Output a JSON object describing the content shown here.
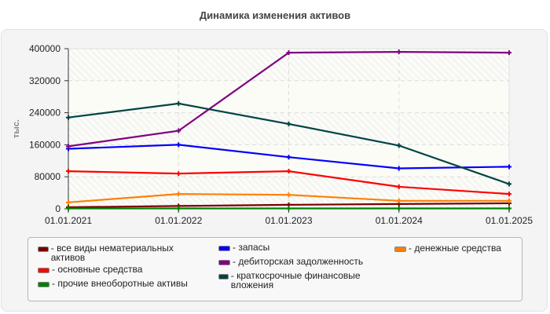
{
  "chart_data": {
    "type": "line",
    "title": "Динамика изменения активов",
    "xlabel": "",
    "ylabel": "тыс.",
    "x": [
      "01.01.2021",
      "01.01.2022",
      "01.01.2023",
      "01.01.2024",
      "01.01.2025"
    ],
    "ylim": [
      0,
      400000
    ],
    "yticks": [
      "0",
      "80000",
      "160000",
      "240000",
      "320000",
      "400000"
    ],
    "grid": true,
    "legend_position": "bottom",
    "series": [
      {
        "name": "все виды нематериальных активов",
        "color": "#7a0000",
        "values": [
          4000,
          7000,
          10000,
          12000,
          14000
        ]
      },
      {
        "name": "основные средства",
        "color": "#ff0000",
        "values": [
          94000,
          88000,
          94000,
          55000,
          37000
        ]
      },
      {
        "name": "прочие внеоборотные активы",
        "color": "#008000",
        "values": [
          1000,
          1000,
          1000,
          1000,
          1000
        ]
      },
      {
        "name": "запасы",
        "color": "#0000ff",
        "values": [
          150000,
          160000,
          129000,
          101000,
          105000
        ]
      },
      {
        "name": "дебиторская задолженность",
        "color": "#800080",
        "values": [
          156000,
          195000,
          390000,
          392000,
          390000
        ]
      },
      {
        "name": "краткосрочные финансовые вложения",
        "color": "#004444",
        "values": [
          228000,
          263000,
          212000,
          158000,
          62000
        ]
      },
      {
        "name": "денежные средства",
        "color": "#ff8000",
        "values": [
          16000,
          37000,
          35000,
          20000,
          20000
        ]
      }
    ]
  },
  "legend": {
    "items": [
      {
        "label": "- все виды нематериальных активов",
        "color": "#7a0000"
      },
      {
        "label": "- основные средства",
        "color": "#ff0000"
      },
      {
        "label": "- прочие внеоборотные активы",
        "color": "#008000"
      },
      {
        "label": "- запасы",
        "color": "#0000ff"
      },
      {
        "label": "- дебиторская задолженность",
        "color": "#800080"
      },
      {
        "label": "- краткосрочные финансовые вложения",
        "color": "#004444"
      },
      {
        "label": "- денежные средства",
        "color": "#ff8000"
      }
    ]
  }
}
